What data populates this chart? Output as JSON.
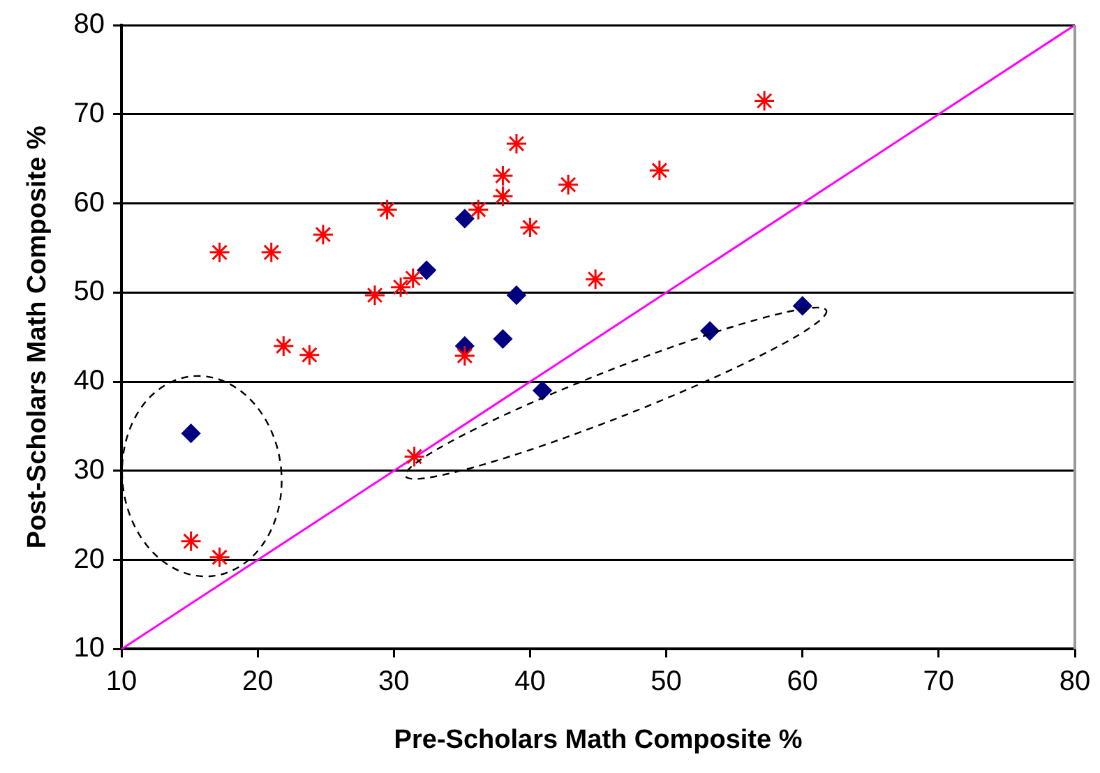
{
  "chart_data": {
    "type": "scatter",
    "xlabel": "Pre-Scholars Math Composite %",
    "ylabel": "Post-Scholars Math Composite %",
    "xlim": [
      10,
      80
    ],
    "ylim": [
      10,
      80
    ],
    "xticks": [
      10,
      20,
      30,
      40,
      50,
      60,
      70,
      80
    ],
    "yticks": [
      10,
      20,
      30,
      40,
      50,
      60,
      70,
      80
    ],
    "grid": "y",
    "legend": false,
    "series": [
      {
        "color": "#ff0000",
        "marker": "cross",
        "x": [
          15.1,
          17.2,
          17.2,
          21.0,
          21.9,
          23.8,
          24.8,
          29.5,
          28.6,
          30.5,
          31.4,
          31.5,
          35.2,
          36.2,
          38.0,
          38.0,
          39.0,
          40.0,
          42.8,
          44.8,
          49.5,
          57.2
        ],
        "values": [
          22.1,
          20.3,
          54.5,
          54.5,
          44.0,
          43.0,
          56.5,
          59.3,
          49.7,
          50.6,
          51.6,
          31.6,
          42.9,
          59.3,
          63.1,
          60.8,
          66.7,
          57.3,
          62.1,
          51.5,
          63.7,
          71.5
        ]
      },
      {
        "color": "#000080",
        "marker": "diamond",
        "x": [
          15.1,
          32.4,
          35.2,
          35.2,
          38.0,
          39.0,
          40.9,
          53.2,
          60.0
        ],
        "values": [
          34.2,
          52.5,
          58.3,
          44.0,
          44.8,
          49.7,
          39.0,
          45.7,
          48.5
        ]
      },
      {
        "type": "line",
        "color": "#ff00ff",
        "marker": "none",
        "x": [
          10,
          80
        ],
        "values": [
          10,
          80
        ]
      }
    ]
  }
}
